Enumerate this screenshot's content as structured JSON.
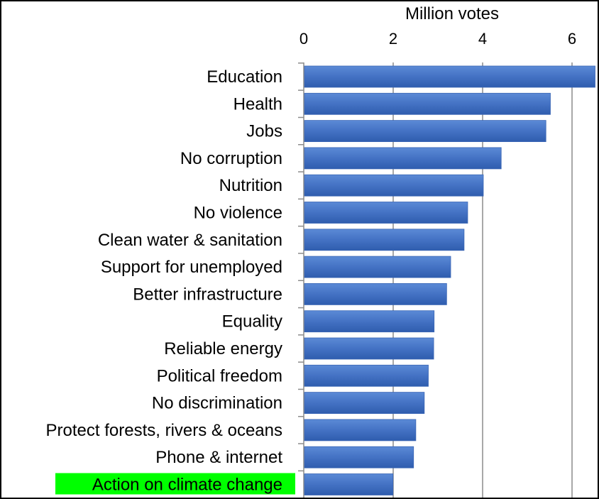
{
  "chart_data": {
    "type": "bar",
    "orientation": "horizontal",
    "xlabel": "Million votes",
    "xlim": [
      0,
      6.5
    ],
    "xticks": [
      0,
      2,
      4,
      6
    ],
    "x_axis_position": "top",
    "grid": true,
    "bar_color": "#4472C4",
    "highlight_color": "#00FF00",
    "categories": [
      "Education",
      "Health",
      "Jobs",
      "No corruption",
      "Nutrition",
      "No violence",
      "Clean water & sanitation",
      "Support for unemployed",
      "Better infrastructure",
      "Equality",
      "Reliable energy",
      "Political freedom",
      "No discrimination",
      "Protect forests, rivers & oceans",
      "Phone & internet",
      "Action on climate change"
    ],
    "values": [
      6.5,
      5.5,
      5.4,
      4.4,
      4.0,
      3.65,
      3.57,
      3.27,
      3.18,
      2.9,
      2.89,
      2.77,
      2.68,
      2.49,
      2.44,
      1.98
    ],
    "highlighted_category": "Action on climate change"
  }
}
